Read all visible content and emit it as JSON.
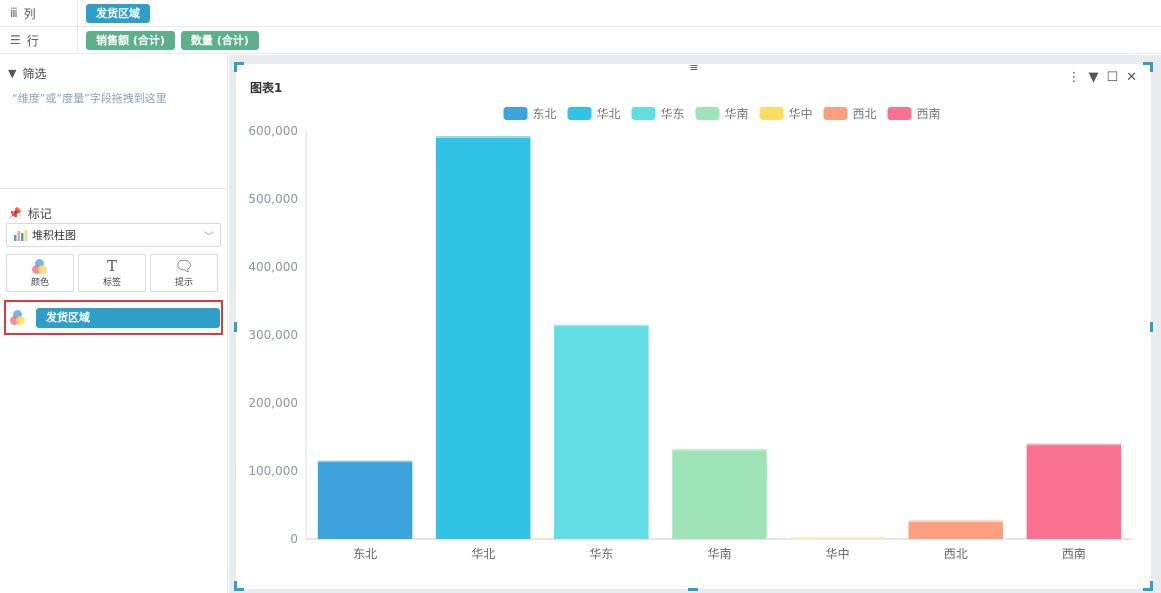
{
  "shelves": {
    "columns": {
      "label": "列",
      "icon": "column-icon",
      "pills": [
        "发货区域"
      ]
    },
    "rows": {
      "label": "行",
      "icon": "row-icon",
      "pills": [
        "销售额 (合计)",
        "数量 (合计)"
      ]
    }
  },
  "filter": {
    "title": "筛选",
    "icon": "filter-icon",
    "hint": "“维度”或“度量”字段拖拽到这里"
  },
  "marks": {
    "title": "标记",
    "icon": "pin-icon",
    "chart_type": "堆积柱图",
    "buttons": [
      {
        "label": "颜色",
        "icon": "color-icon"
      },
      {
        "label": "标签",
        "icon": "text-icon"
      },
      {
        "label": "提示",
        "icon": "tooltip-icon"
      }
    ],
    "assigned_field": "发货区域"
  },
  "chart_card": {
    "title": "图表1"
  },
  "colors": {
    "东北": "#3ca3dc",
    "华北": "#31c3e6",
    "华东": "#62dde3",
    "华南": "#9fe4b6",
    "华中": "#fddc5e",
    "西北": "#fba07e",
    "西南": "#f97391"
  },
  "chart_data": {
    "type": "bar",
    "categories": [
      "东北",
      "华北",
      "华东",
      "华南",
      "华中",
      "西北",
      "西南"
    ],
    "values": [
      115000,
      592000,
      315000,
      132000,
      2000,
      27000,
      140000
    ],
    "legend": [
      "东北",
      "华北",
      "华东",
      "华南",
      "华中",
      "西北",
      "西南"
    ],
    "ylim": [
      0,
      600000
    ],
    "yticks": [
      "0",
      "100,000",
      "200,000",
      "300,000",
      "400,000",
      "500,000",
      "600,000"
    ],
    "legend_position": "top-center"
  }
}
